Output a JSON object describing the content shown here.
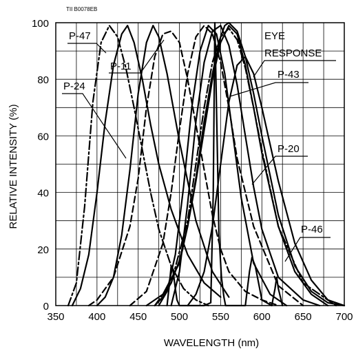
{
  "chart_data": {
    "type": "line",
    "code": "TII B0078EB",
    "xlabel": "WAVELENGTH (nm)",
    "ylabel": "RELATIVE INTENSITY (%)",
    "xlim": [
      350,
      700
    ],
    "ylim": [
      0,
      100
    ],
    "xticks": [
      350,
      400,
      450,
      500,
      550,
      600,
      650,
      700
    ],
    "yticks": [
      0,
      20,
      40,
      60,
      80,
      100
    ],
    "grid": true,
    "annotation_labels": [
      "P-47",
      "P-11",
      "P-24",
      "EYE",
      "RESPONSE",
      "P-43",
      "P-20",
      "P-46"
    ],
    "series": [
      {
        "name": "P-47",
        "style": "solid",
        "x": [
          370,
          380,
          390,
          400,
          410,
          420,
          430,
          437,
          445,
          455,
          465,
          475,
          490,
          510,
          530,
          550
        ],
        "y": [
          0,
          6,
          18,
          40,
          65,
          85,
          96,
          99,
          93,
          80,
          64,
          50,
          34,
          18,
          8,
          3
        ]
      },
      {
        "name": "P-11",
        "style": "solid",
        "x": [
          400,
          410,
          420,
          430,
          440,
          450,
          460,
          468,
          475,
          485,
          500,
          520,
          540,
          560
        ],
        "y": [
          0,
          3,
          10,
          25,
          48,
          75,
          93,
          99,
          95,
          82,
          58,
          30,
          12,
          3
        ]
      },
      {
        "name": "P-24",
        "style": "dashdot",
        "x": [
          365,
          375,
          385,
          395,
          405,
          415,
          425,
          435,
          445,
          455,
          465,
          475,
          490,
          505,
          520,
          535
        ],
        "y": [
          0,
          8,
          35,
          72,
          93,
          99,
          95,
          84,
          70,
          55,
          40,
          27,
          14,
          6,
          2,
          0
        ]
      },
      {
        "name": "",
        "style": "dashed",
        "x": [
          390,
          400,
          420,
          440,
          450,
          460,
          470,
          480,
          490,
          500,
          510,
          520,
          530,
          540,
          550,
          560,
          580,
          600,
          620
        ],
        "y": [
          0,
          2,
          10,
          28,
          45,
          70,
          88,
          96,
          97,
          93,
          80,
          64,
          48,
          32,
          20,
          12,
          5,
          2,
          0
        ]
      },
      {
        "name": "",
        "style": "dashed",
        "x": [
          440,
          460,
          480,
          490,
          500,
          510,
          520,
          530,
          540,
          550,
          560,
          570,
          590,
          620,
          650
        ],
        "y": [
          0,
          5,
          22,
          40,
          62,
          82,
          95,
          99,
          96,
          86,
          70,
          52,
          28,
          7,
          0
        ]
      },
      {
        "name": "",
        "style": "solid",
        "x": [
          475,
          485,
          495,
          505,
          515,
          525,
          535,
          545,
          555,
          565,
          575,
          590,
          610,
          630
        ],
        "y": [
          0,
          5,
          18,
          42,
          70,
          90,
          99,
          96,
          82,
          60,
          38,
          15,
          4,
          0
        ]
      },
      {
        "name": "",
        "style": "solid",
        "x": [
          490,
          500,
          510,
          520,
          530,
          540,
          550,
          560,
          570,
          580,
          590,
          600,
          620,
          650,
          670
        ],
        "y": [
          0,
          12,
          36,
          65,
          86,
          97,
          99,
          92,
          78,
          60,
          42,
          27,
          10,
          2,
          0
        ]
      },
      {
        "name": "EYE RESPONSE",
        "style": "solid",
        "x": [
          460,
          480,
          500,
          510,
          520,
          530,
          540,
          550,
          555,
          560,
          570,
          580,
          590,
          600,
          620,
          640,
          660,
          680,
          700
        ],
        "y": [
          0,
          4,
          15,
          28,
          45,
          65,
          82,
          95,
          99,
          100,
          97,
          88,
          75,
          60,
          32,
          14,
          5,
          1,
          0
        ]
      },
      {
        "name": "",
        "style": "dashdot",
        "x": [
          470,
          490,
          510,
          520,
          530,
          540,
          550,
          560,
          570,
          580,
          590,
          600,
          620,
          650,
          690
        ],
        "y": [
          0,
          8,
          30,
          50,
          70,
          86,
          95,
          98,
          94,
          84,
          70,
          55,
          28,
          8,
          0
        ]
      },
      {
        "name": "P-43",
        "style": "solid",
        "x": [
          485,
          488,
          490,
          492,
          495,
          497,
          500,
          530,
          538,
          541,
          543,
          545,
          548,
          551,
          554,
          556,
          580,
          585,
          588,
          592,
          596,
          600,
          612,
          616,
          618,
          620,
          625
        ],
        "y": [
          0,
          8,
          14,
          13,
          6,
          2,
          0,
          0,
          1,
          40,
          100,
          70,
          25,
          10,
          3,
          0,
          0,
          12,
          17,
          14,
          8,
          2,
          0,
          6,
          10,
          6,
          0
        ]
      },
      {
        "name": "P-20",
        "style": "solid",
        "x": [
          470,
          480,
          490,
          500,
          510,
          520,
          530,
          540,
          550,
          560,
          570,
          580,
          590,
          600,
          620,
          640,
          660,
          680
        ],
        "y": [
          0,
          3,
          8,
          16,
          28,
          44,
          62,
          80,
          93,
          99,
          96,
          85,
          70,
          54,
          28,
          12,
          4,
          0
        ]
      },
      {
        "name": "P-46",
        "style": "solid",
        "x": [
          510,
          520,
          530,
          540,
          550,
          560,
          570,
          580,
          590,
          600,
          620,
          640,
          660,
          680,
          700
        ],
        "y": [
          0,
          4,
          12,
          28,
          50,
          72,
          85,
          88,
          82,
          70,
          44,
          22,
          9,
          2,
          0
        ]
      }
    ]
  }
}
